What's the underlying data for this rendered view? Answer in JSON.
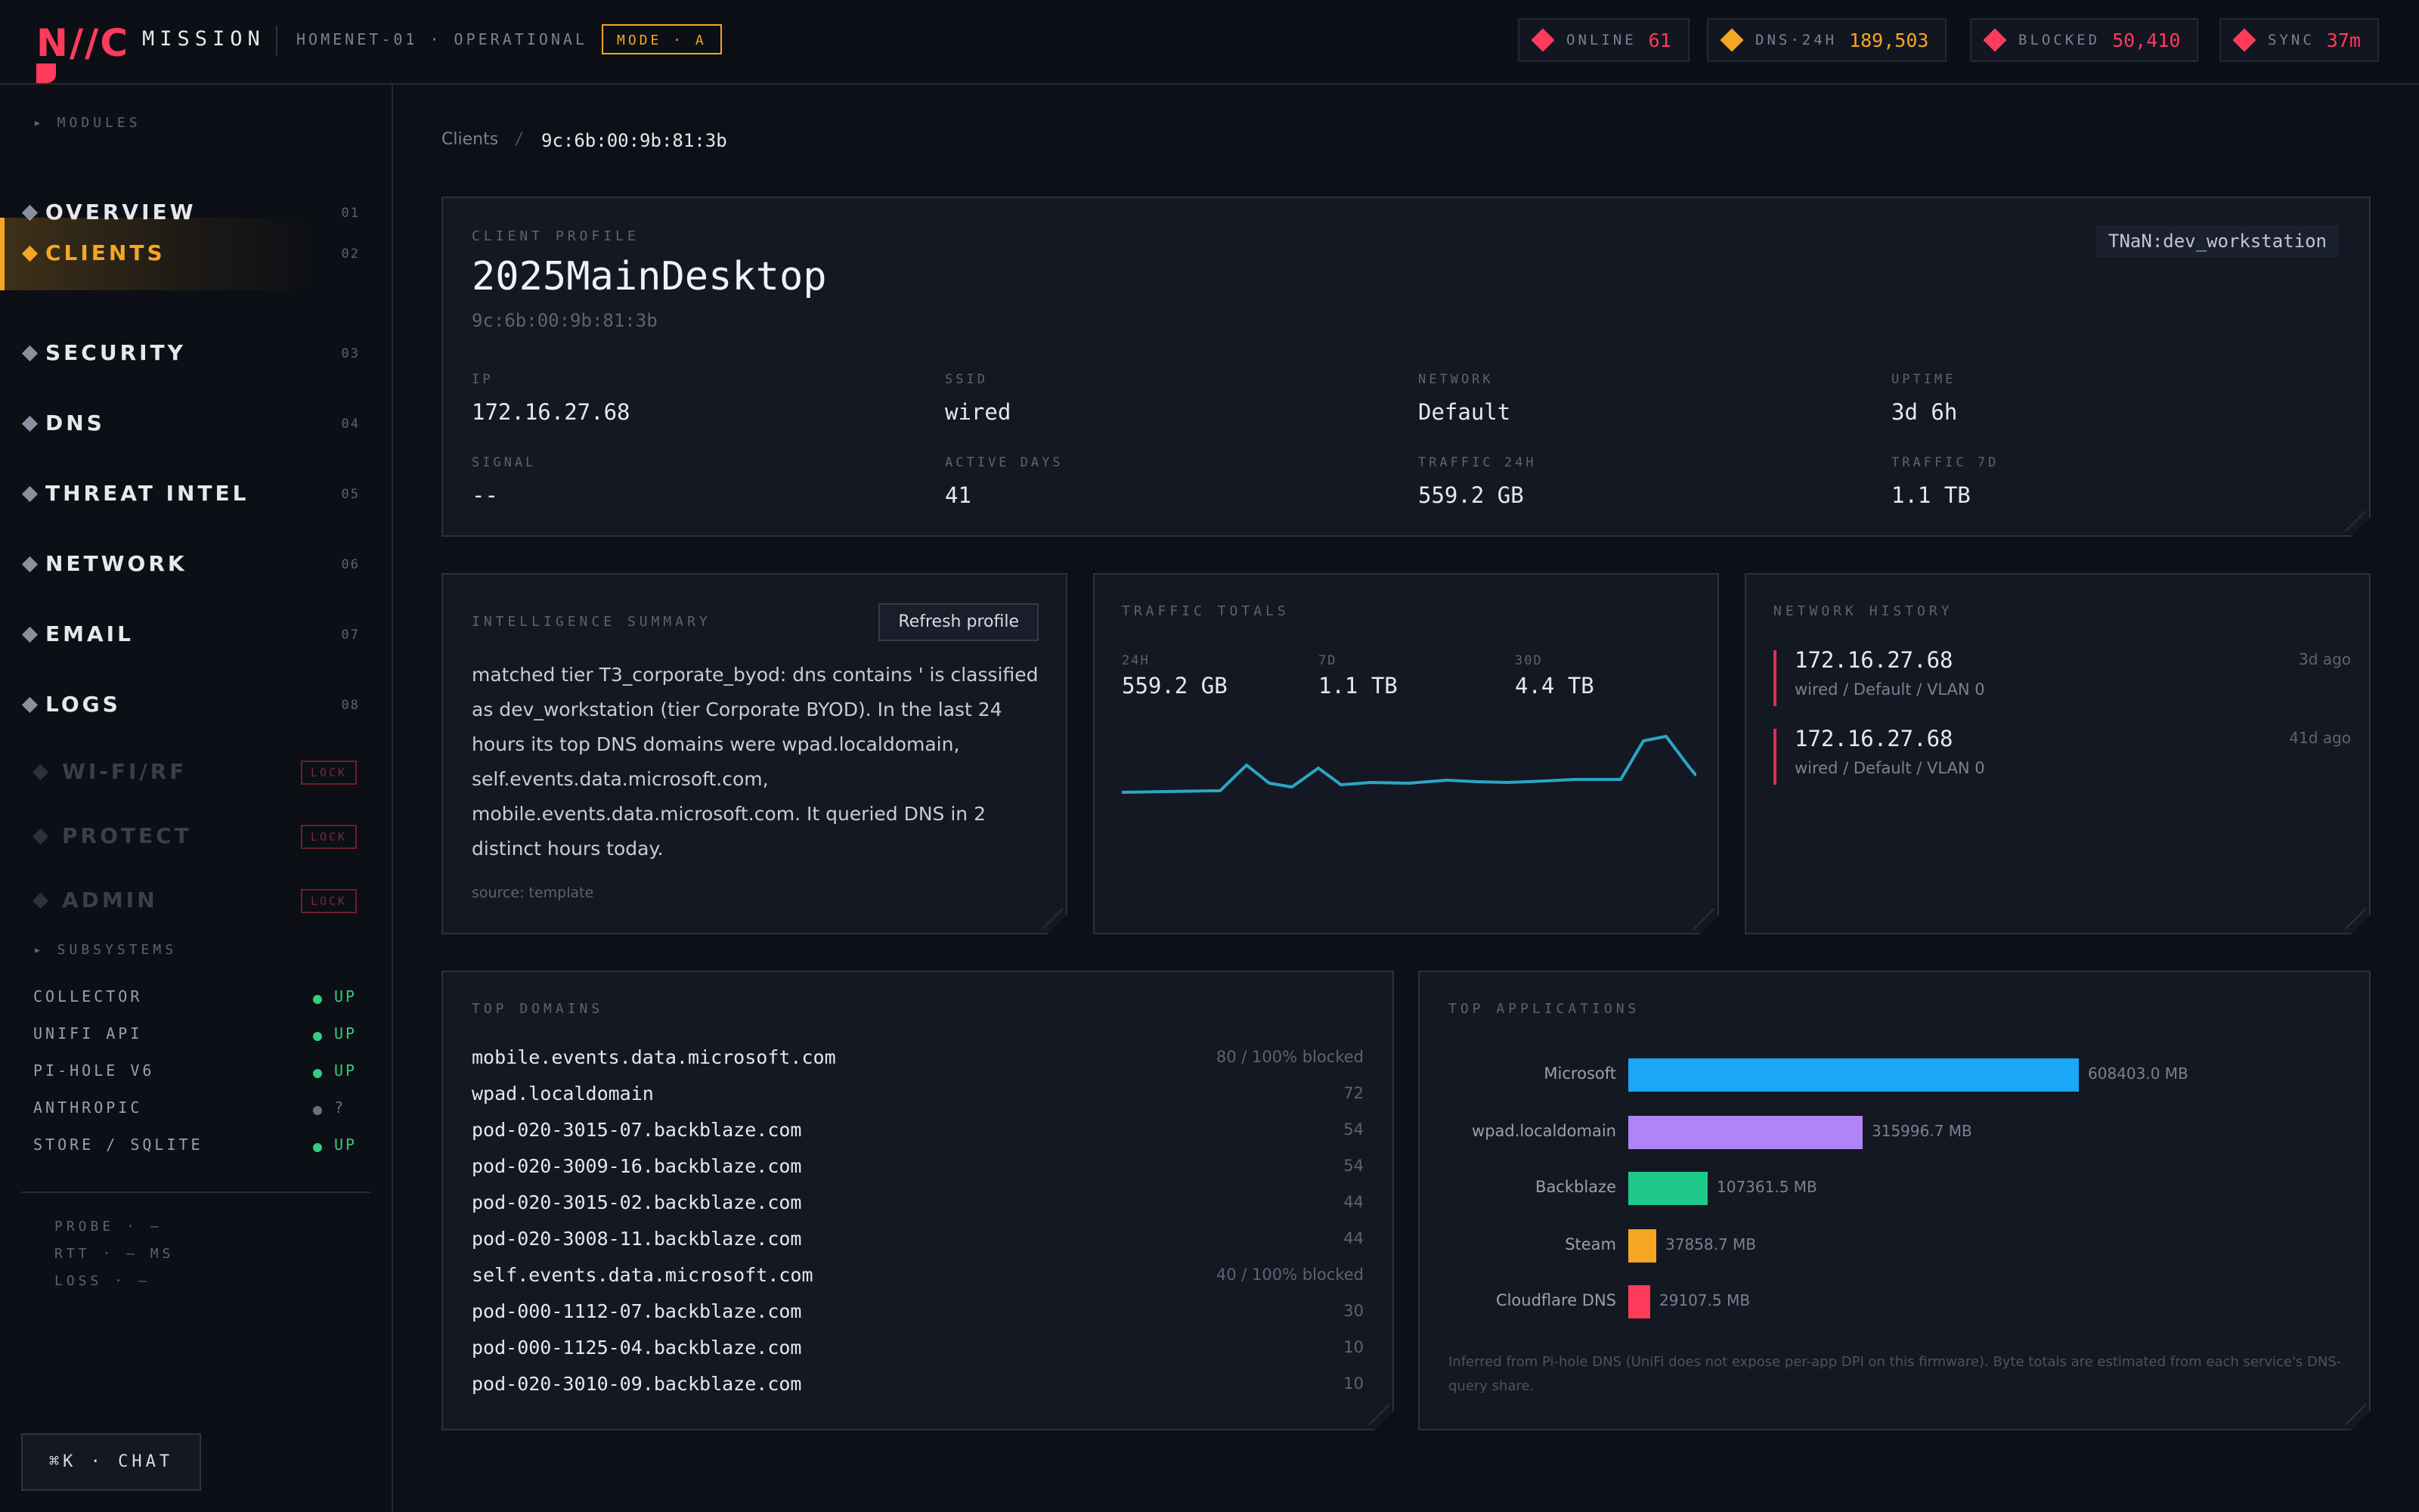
{
  "topbar": {
    "logo": "N//C",
    "mission": "MISSION",
    "node_status": "HOMENET-01 · OPERATIONAL",
    "mode": "MODE · A",
    "stats": [
      {
        "label": "ONLINE",
        "value": "61",
        "color": "#ff3b5c"
      },
      {
        "label": "DNS·24H",
        "value": "189,503",
        "color": "#f5a623"
      },
      {
        "label": "BLOCKED",
        "value": "50,410",
        "color": "#ff3b5c"
      },
      {
        "label": "SYNC",
        "value": "37m",
        "color": "#ff3b5c"
      }
    ]
  },
  "sidebar": {
    "modules_header": "▸ MODULES",
    "items": [
      {
        "label": "OVERVIEW",
        "num": "01"
      },
      {
        "label": "CLIENTS",
        "num": "02",
        "active": true
      },
      {
        "label": "SECURITY",
        "num": "03"
      },
      {
        "label": "DNS",
        "num": "04"
      },
      {
        "label": "THREAT INTEL",
        "num": "05"
      },
      {
        "label": "NETWORK",
        "num": "06"
      },
      {
        "label": "EMAIL",
        "num": "07"
      },
      {
        "label": "LOGS",
        "num": "08"
      }
    ],
    "locked": [
      {
        "label": "WI-FI/RF",
        "badge": "LOCK"
      },
      {
        "label": "PROTECT",
        "badge": "LOCK"
      },
      {
        "label": "ADMIN",
        "badge": "LOCK"
      }
    ],
    "subsystems_header": "▸ SUBSYSTEMS",
    "subsystems": [
      {
        "label": "COLLECTOR",
        "status": "UP",
        "color": "#2fd07a"
      },
      {
        "label": "UNIFI API",
        "status": "UP",
        "color": "#2fd07a"
      },
      {
        "label": "PI-HOLE V6",
        "status": "UP",
        "color": "#2fd07a"
      },
      {
        "label": "ANTHROPIC",
        "status": "?",
        "color": "#6a6f7c"
      },
      {
        "label": "STORE / SQLITE",
        "status": "UP",
        "color": "#2fd07a"
      }
    ],
    "probe": [
      "PROBE · —",
      "RTT · — MS",
      "LOSS · —"
    ],
    "chat": "⌘K · CHAT"
  },
  "breadcrumb": {
    "parent": "Clients",
    "sep": "/",
    "current": "9c:6b:00:9b:81:3b"
  },
  "profile": {
    "title": "CLIENT PROFILE",
    "name": "2025MainDesktop",
    "mac": "9c:6b:00:9b:81:3b",
    "tag": "TNaN:dev_workstation",
    "fields": [
      {
        "label": "IP",
        "value": "172.16.27.68"
      },
      {
        "label": "SSID",
        "value": "wired"
      },
      {
        "label": "NETWORK",
        "value": "Default"
      },
      {
        "label": "UPTIME",
        "value": "3d 6h"
      },
      {
        "label": "SIGNAL",
        "value": "--"
      },
      {
        "label": "ACTIVE DAYS",
        "value": "41"
      },
      {
        "label": "TRAFFIC 24H",
        "value": "559.2 GB"
      },
      {
        "label": "TRAFFIC 7D",
        "value": "1.1 TB"
      }
    ]
  },
  "intel": {
    "title": "INTELLIGENCE SUMMARY",
    "refresh": "Refresh profile",
    "text": "matched tier T3_corporate_byod: dns contains ' is classified as dev_workstation (tier Corporate BYOD). In the last 24 hours its top DNS domains were wpad.localdomain, self.events.data.microsoft.com, mobile.events.data.microsoft.com. It queried DNS in 2 distinct hours today.",
    "source": "source: template"
  },
  "traffic": {
    "title": "TRAFFIC TOTALS",
    "totals": [
      {
        "label": "24H",
        "value": "559.2 GB"
      },
      {
        "label": "7D",
        "value": "1.1 TB"
      },
      {
        "label": "30D",
        "value": "4.4 TB"
      }
    ],
    "sparkline_color": "#2aa6c4"
  },
  "history": {
    "title": "NETWORK HISTORY",
    "entries": [
      {
        "ip": "172.16.27.68",
        "meta": "wired / Default / VLAN 0",
        "ago": "3d ago"
      },
      {
        "ip": "172.16.27.68",
        "meta": "wired / Default / VLAN 0",
        "ago": "41d ago"
      }
    ]
  },
  "domains": {
    "title": "TOP DOMAINS",
    "rows": [
      {
        "name": "mobile.events.data.microsoft.com",
        "count": "80 / 100% blocked"
      },
      {
        "name": "wpad.localdomain",
        "count": "72"
      },
      {
        "name": "pod-020-3015-07.backblaze.com",
        "count": "54"
      },
      {
        "name": "pod-020-3009-16.backblaze.com",
        "count": "54"
      },
      {
        "name": "pod-020-3015-02.backblaze.com",
        "count": "44"
      },
      {
        "name": "pod-020-3008-11.backblaze.com",
        "count": "44"
      },
      {
        "name": "self.events.data.microsoft.com",
        "count": "40 / 100% blocked"
      },
      {
        "name": "pod-000-1112-07.backblaze.com",
        "count": "30"
      },
      {
        "name": "pod-000-1125-04.backblaze.com",
        "count": "10"
      },
      {
        "name": "pod-020-3010-09.backblaze.com",
        "count": "10"
      }
    ]
  },
  "apps": {
    "title": "TOP APPLICATIONS",
    "rows": [
      {
        "name": "Microsoft",
        "mb": 608403.0,
        "label": "608403.0 MB",
        "color": "#1aa7f5"
      },
      {
        "name": "wpad.localdomain",
        "mb": 315996.7,
        "label": "315996.7 MB",
        "color": "#b184f5"
      },
      {
        "name": "Backblaze",
        "mb": 107361.5,
        "label": "107361.5 MB",
        "color": "#1ec98a"
      },
      {
        "name": "Steam",
        "mb": 37858.7,
        "label": "37858.7 MB",
        "color": "#f5a623"
      },
      {
        "name": "Cloudflare DNS",
        "mb": 29107.5,
        "label": "29107.5 MB",
        "color": "#ff3b5c"
      }
    ],
    "footnote": "Inferred from Pi-hole DNS (UniFi does not expose per-app DPI on this firmware). Byte totals are estimated from each service's DNS-query share."
  }
}
